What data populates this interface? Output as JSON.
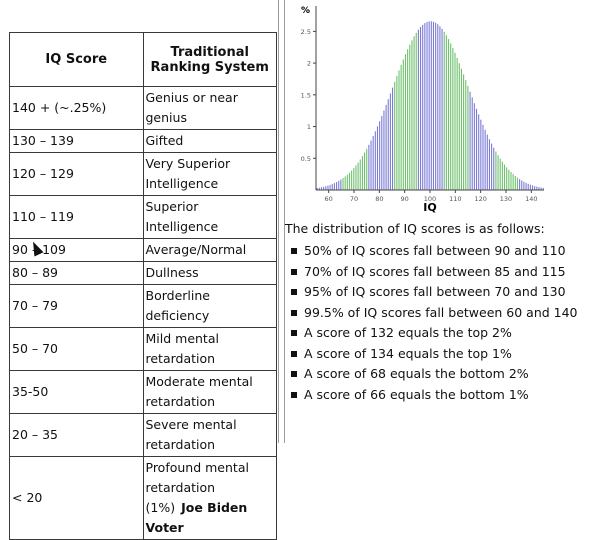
{
  "table": {
    "headers": [
      "IQ Score",
      "Traditional Ranking System"
    ],
    "rows": [
      {
        "score": "140 + (~.25%)",
        "rank": "Genius or near genius"
      },
      {
        "score": "130 – 139",
        "rank": "Gifted"
      },
      {
        "score": "120 – 129",
        "rank": "Very Superior Intelligence"
      },
      {
        "score": "110 – 119",
        "rank": "Superior Intelligence"
      },
      {
        "score": "90 – 109",
        "rank": "Average/Normal"
      },
      {
        "score": "80 – 89",
        "rank": "Dullness"
      },
      {
        "score": "70 – 79",
        "rank": "Borderline deficiency"
      },
      {
        "score": "50 – 70",
        "rank": "Mild mental retardation"
      },
      {
        "score": "35-50",
        "rank": "Moderate mental retardation"
      },
      {
        "score": "20 – 35",
        "rank": "Severe mental retardation"
      },
      {
        "score": "< 20",
        "rank": "Profound mental retardation (1%)"
      }
    ],
    "overlay_label": "Joe Biden Voter"
  },
  "chart_data": {
    "type": "bar",
    "xlabel": "IQ",
    "ylabel": "%",
    "x_ticks": [
      "60",
      "70",
      "80",
      "90",
      "100",
      "110",
      "120",
      "130",
      "140"
    ],
    "y_ticks": [
      "0.5",
      "1",
      "1.5",
      "2",
      "2.5"
    ],
    "xlim": [
      55,
      145
    ],
    "ylim": [
      0,
      2.9
    ],
    "mean": 100,
    "sd": 15,
    "peak_percent": 2.66,
    "colors": {
      "outer": "#7b7bd6",
      "inner": "#6fc06f"
    }
  },
  "distribution": {
    "intro": "The distribution of IQ scores is as follows:",
    "items": [
      "50% of IQ scores fall between 90 and 110",
      "70% of IQ scores fall between 85 and 115",
      "95% of IQ scores fall between 70 and 130",
      "99.5% of IQ scores fall between 60 and 140",
      "A score of 132 equals the top 2%",
      "A score of 134 equals the top 1%",
      "A score of 68 equals the bottom 2%",
      "A score of 66 equals the bottom 1%"
    ]
  }
}
